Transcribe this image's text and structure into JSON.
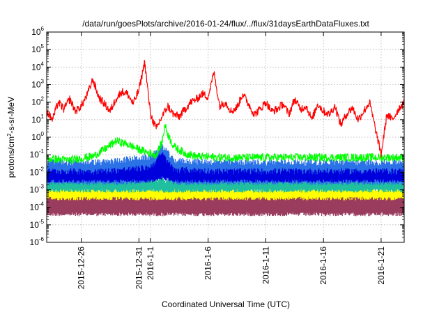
{
  "chart_data": {
    "type": "line",
    "title": "/data/run/goesPlots/archive/2016-01-24/flux/../flux/31daysEarthDataFluxes.txt",
    "xlabel": "Coordinated Universal Time (UTC)",
    "ylabel_parts": {
      "base": "protons/cm",
      "sup": "2",
      "rest": "-s-sr-MeV"
    },
    "y_scale": "log",
    "ylim": [
      1e-06,
      1000000.0
    ],
    "y_ticks": [
      {
        "value": 1e-06,
        "base": "10",
        "exp": "-6"
      },
      {
        "value": 1e-05,
        "base": "10",
        "exp": "-5"
      },
      {
        "value": 0.0001,
        "base": "10",
        "exp": "-4"
      },
      {
        "value": 0.001,
        "base": "10",
        "exp": "-3"
      },
      {
        "value": 0.01,
        "base": "10",
        "exp": "-2"
      },
      {
        "value": 0.1,
        "base": "10",
        "exp": "-1"
      },
      {
        "value": 1,
        "base": "10",
        "exp": "0"
      },
      {
        "value": 10,
        "base": "10",
        "exp": "1"
      },
      {
        "value": 100,
        "base": "10",
        "exp": "2"
      },
      {
        "value": 1000,
        "base": "10",
        "exp": "3"
      },
      {
        "value": 10000,
        "base": "10",
        "exp": "4"
      },
      {
        "value": 100000,
        "base": "10",
        "exp": "5"
      },
      {
        "value": 1000000,
        "base": "10",
        "exp": "6"
      }
    ],
    "xlim": [
      "2015-12-23",
      "2016-01-23"
    ],
    "x_ticks": [
      {
        "date": "2015-12-26",
        "label": "2015-12-26"
      },
      {
        "date": "2015-12-31",
        "label": "2015-12-31"
      },
      {
        "date": "2016-01-01",
        "label": "2016-1-1"
      },
      {
        "date": "2016-01-06",
        "label": "2016-1-6"
      },
      {
        "date": "2016-01-11",
        "label": "2016-1-11"
      },
      {
        "date": "2016-01-16",
        "label": "2016-1-16"
      },
      {
        "date": "2016-01-21",
        "label": "2016-1-21"
      }
    ],
    "grid": true,
    "series": [
      {
        "color": "#9a3c5e",
        "style": "band",
        "x": [
          "2015-12-23",
          "2015-12-28",
          "2016-01-02",
          "2016-01-07",
          "2016-01-12",
          "2016-01-17",
          "2016-01-23"
        ],
        "low": [
          5e-05,
          5e-05,
          5e-05,
          5e-05,
          5e-05,
          5e-05,
          5e-05
        ],
        "high": [
          0.0006,
          0.0006,
          0.0006,
          0.0006,
          0.0006,
          0.0006,
          0.0006
        ]
      },
      {
        "color": "#ffff00",
        "style": "band",
        "x": [
          "2015-12-23",
          "2015-12-28",
          "2016-01-02",
          "2016-01-07",
          "2016-01-12",
          "2016-01-17",
          "2016-01-23"
        ],
        "low": [
          0.0004,
          0.0004,
          0.0004,
          0.0004,
          0.0004,
          0.0004,
          0.0004
        ],
        "high": [
          0.0013,
          0.0013,
          0.0013,
          0.0013,
          0.0013,
          0.0013,
          0.0013
        ]
      },
      {
        "color": "#1fbf9f",
        "style": "band",
        "x": [
          "2015-12-23",
          "2015-12-28",
          "2016-01-02",
          "2016-01-07",
          "2016-01-12",
          "2016-01-17",
          "2016-01-23"
        ],
        "low": [
          0.0011,
          0.0011,
          0.0011,
          0.0011,
          0.0011,
          0.0011,
          0.0011
        ],
        "high": [
          0.004,
          0.004,
          0.004,
          0.004,
          0.004,
          0.004,
          0.004
        ]
      },
      {
        "color": "#2b72e6",
        "style": "band",
        "x": [
          "2015-12-23",
          "2015-12-28",
          "2015-12-30",
          "2016-01-01",
          "2016-01-02",
          "2016-01-03",
          "2016-01-07",
          "2016-01-12",
          "2016-01-17",
          "2016-01-23"
        ],
        "low": [
          0.003,
          0.003,
          0.003,
          0.004,
          0.008,
          0.003,
          0.003,
          0.003,
          0.003,
          0.003
        ],
        "high": [
          0.04,
          0.04,
          0.06,
          0.08,
          0.4,
          0.05,
          0.04,
          0.04,
          0.04,
          0.04
        ]
      },
      {
        "color": "#0000dd",
        "style": "band",
        "x": [
          "2015-12-23",
          "2015-12-28",
          "2015-12-30",
          "2016-01-01",
          "2016-01-02",
          "2016-01-03",
          "2016-01-07",
          "2016-01-12",
          "2016-01-17",
          "2016-01-23"
        ],
        "low": [
          0.004,
          0.004,
          0.004,
          0.004,
          0.006,
          0.004,
          0.004,
          0.004,
          0.004,
          0.004
        ],
        "high": [
          0.012,
          0.012,
          0.015,
          0.02,
          0.12,
          0.015,
          0.012,
          0.012,
          0.012,
          0.012
        ]
      },
      {
        "color": "#00ff00",
        "style": "line",
        "x": [
          "2015-12-23",
          "2015-12-25",
          "2015-12-27",
          "2015-12-28",
          "2015-12-29",
          "2015-12-30",
          "2015-12-31",
          "2016-01-01",
          "2016-01-01T12",
          "2016-01-02",
          "2016-01-02T06",
          "2016-01-02T12",
          "2016-01-03",
          "2016-01-04",
          "2016-01-05",
          "2016-01-07",
          "2016-01-10",
          "2016-01-13",
          "2016-01-16",
          "2016-01-19",
          "2016-01-21",
          "2016-01-23"
        ],
        "y": [
          0.06,
          0.05,
          0.08,
          0.2,
          0.6,
          0.4,
          0.2,
          0.12,
          0.1,
          0.5,
          5,
          1.5,
          0.3,
          0.12,
          0.08,
          0.07,
          0.07,
          0.07,
          0.07,
          0.07,
          0.07,
          0.07
        ]
      },
      {
        "color": "#ff0000",
        "style": "line",
        "x": [
          "2015-12-23",
          "2015-12-23T12",
          "2015-12-24",
          "2015-12-24T12",
          "2015-12-25",
          "2015-12-25T12",
          "2015-12-26",
          "2015-12-26T12",
          "2015-12-27",
          "2015-12-27T12",
          "2015-12-28",
          "2015-12-28T12",
          "2015-12-29",
          "2015-12-29T12",
          "2015-12-30",
          "2015-12-30T12",
          "2015-12-31",
          "2015-12-31T12",
          "2016-01-01",
          "2016-01-01T12",
          "2016-01-02",
          "2016-01-02T12",
          "2016-01-03",
          "2016-01-03T12",
          "2016-01-04",
          "2016-01-04T12",
          "2016-01-05",
          "2016-01-05T12",
          "2016-01-06",
          "2016-01-06T12",
          "2016-01-07",
          "2016-01-07T12",
          "2016-01-08",
          "2016-01-08T12",
          "2016-01-09",
          "2016-01-09T12",
          "2016-01-10",
          "2016-01-10T12",
          "2016-01-11",
          "2016-01-11T12",
          "2016-01-12",
          "2016-01-12T12",
          "2016-01-13",
          "2016-01-13T12",
          "2016-01-14",
          "2016-01-14T12",
          "2016-01-15",
          "2016-01-15T12",
          "2016-01-16",
          "2016-01-16T12",
          "2016-01-17",
          "2016-01-17T12",
          "2016-01-18",
          "2016-01-18T12",
          "2016-01-19",
          "2016-01-19T12",
          "2016-01-20",
          "2016-01-20T12",
          "2016-01-21",
          "2016-01-21T12",
          "2016-01-22",
          "2016-01-22T12",
          "2016-01-23"
        ],
        "y": [
          30,
          10,
          100,
          40,
          150,
          30,
          60,
          250,
          2000,
          200,
          80,
          30,
          150,
          400,
          300,
          80,
          500,
          20000,
          20,
          3,
          15,
          60,
          20,
          15,
          40,
          100,
          150,
          300,
          200,
          5000,
          60,
          100,
          30,
          50,
          300,
          80,
          20,
          40,
          100,
          30,
          40,
          80,
          20,
          150,
          40,
          60,
          10,
          80,
          30,
          20,
          60,
          5,
          20,
          50,
          10,
          30,
          100,
          3,
          0.1,
          20,
          10,
          40,
          100
        ]
      }
    ]
  }
}
